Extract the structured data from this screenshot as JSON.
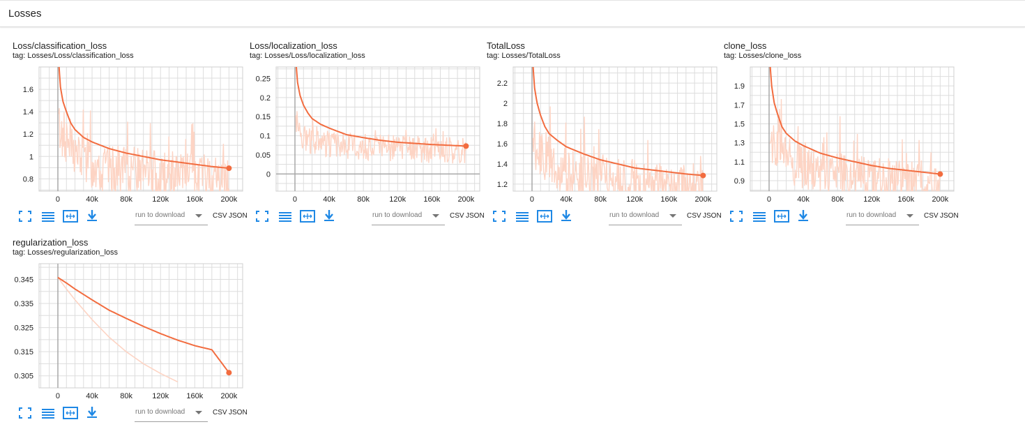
{
  "section": {
    "title": "Losses"
  },
  "colors": {
    "smoothed": "#f26c3f",
    "raw": "#fdd4c4",
    "grid": "#dddddd",
    "axis": "#a8a8a8",
    "icon": "#1e88e5"
  },
  "toolbar": {
    "icons": [
      "fullscreen-icon",
      "log-scale-icon",
      "fit-domain-icon",
      "download-icon"
    ],
    "run_select_placeholder": "run to download",
    "csv_label": "CSV",
    "json_label": "JSON"
  },
  "cards": [
    {
      "title": "Loss/classification_loss",
      "tag": "tag: Losses/Loss/classification_loss",
      "chart_data": {
        "type": "line",
        "xlabel": "",
        "ylabel": "",
        "xlim": [
          -22000,
          216000
        ],
        "ylim": [
          0.69,
          1.8
        ],
        "x_ticks": [
          0,
          40000,
          80000,
          120000,
          160000,
          200000
        ],
        "x_tick_labels": [
          "0",
          "40k",
          "80k",
          "120k",
          "160k",
          "200k"
        ],
        "y_ticks": [
          0.8,
          1.0,
          1.2,
          1.4,
          1.6
        ],
        "y_tick_labels": [
          "0.8",
          "1",
          "1.2",
          "1.4",
          "1.6"
        ],
        "grid": true,
        "series": [
          {
            "x": [
              1000,
              3000,
              6000,
              10000,
              15000,
              20000,
              30000,
              40000,
              60000,
              80000,
              100000,
              120000,
              140000,
              160000,
              180000,
              200000
            ],
            "y": [
              1.85,
              1.62,
              1.49,
              1.4,
              1.3,
              1.24,
              1.17,
              1.13,
              1.07,
              1.03,
              1.0,
              0.97,
              0.95,
              0.93,
              0.91,
              0.895
            ]
          },
          {
            "raw": true,
            "x": [
              1000,
              5000,
              10000,
              20000,
              30000,
              40000,
              60000,
              80000,
              100000,
              120000,
              140000,
              160000,
              180000,
              200000
            ],
            "y": [
              1.3,
              1.2,
              1.15,
              1.05,
              1.0,
              0.95,
              0.9,
              0.9,
              0.88,
              0.85,
              0.85,
              0.83,
              0.83,
              0.82
            ],
            "spread": 0.22,
            "peaks": [
              1.42,
              1.4
            ]
          }
        ]
      }
    },
    {
      "title": "Loss/localization_loss",
      "tag": "tag: Losses/Loss/localization_loss",
      "chart_data": {
        "type": "line",
        "xlabel": "",
        "ylabel": "",
        "xlim": [
          -22000,
          216000
        ],
        "ylim": [
          -0.045,
          0.28
        ],
        "x_ticks": [
          0,
          40000,
          80000,
          120000,
          160000,
          200000
        ],
        "x_tick_labels": [
          "0",
          "40k",
          "80k",
          "120k",
          "160k",
          "200k"
        ],
        "y_ticks": [
          0,
          0.05,
          0.1,
          0.15,
          0.2,
          0.25
        ],
        "y_tick_labels": [
          "0",
          "0.05",
          "0.1",
          "0.15",
          "0.2",
          "0.25"
        ],
        "grid": true,
        "series": [
          {
            "x": [
              1000,
              3000,
              6000,
              10000,
              15000,
              20000,
              30000,
              40000,
              60000,
              80000,
              100000,
              120000,
              140000,
              160000,
              180000,
              200000
            ],
            "y": [
              0.3,
              0.24,
              0.205,
              0.18,
              0.16,
              0.145,
              0.13,
              0.12,
              0.103,
              0.095,
              0.088,
              0.083,
              0.08,
              0.077,
              0.075,
              0.073
            ]
          },
          {
            "raw": true,
            "x": [
              1000,
              5000,
              10000,
              20000,
              30000,
              40000,
              60000,
              80000,
              100000,
              120000,
              140000,
              160000,
              180000,
              200000
            ],
            "y": [
              0.15,
              0.12,
              0.1,
              0.09,
              0.085,
              0.08,
              0.078,
              0.075,
              0.073,
              0.07,
              0.068,
              0.066,
              0.065,
              0.064
            ],
            "spread": 0.035,
            "peaks": [
              0.16,
              0.15
            ]
          }
        ]
      }
    },
    {
      "title": "TotalLoss",
      "tag": "tag: Losses/TotalLoss",
      "chart_data": {
        "type": "line",
        "xlabel": "",
        "ylabel": "",
        "xlim": [
          -22000,
          216000
        ],
        "ylim": [
          1.13,
          2.36
        ],
        "x_ticks": [
          0,
          40000,
          80000,
          120000,
          160000,
          200000
        ],
        "x_tick_labels": [
          "0",
          "40k",
          "80k",
          "120k",
          "160k",
          "200k"
        ],
        "y_ticks": [
          1.2,
          1.4,
          1.6,
          1.8,
          2.0,
          2.2
        ],
        "y_tick_labels": [
          "1.2",
          "1.4",
          "1.6",
          "1.8",
          "2",
          "2.2"
        ],
        "grid": true,
        "series": [
          {
            "x": [
              1000,
              3000,
              6000,
              10000,
              15000,
              20000,
              30000,
              40000,
              60000,
              80000,
              100000,
              120000,
              140000,
              160000,
              180000,
              200000
            ],
            "y": [
              2.4,
              2.15,
              2.0,
              1.88,
              1.77,
              1.7,
              1.63,
              1.57,
              1.5,
              1.44,
              1.4,
              1.36,
              1.34,
              1.32,
              1.3,
              1.285
            ]
          },
          {
            "raw": true,
            "x": [
              1000,
              5000,
              10000,
              20000,
              30000,
              40000,
              60000,
              80000,
              100000,
              120000,
              140000,
              160000,
              180000,
              200000
            ],
            "y": [
              1.7,
              1.6,
              1.5,
              1.45,
              1.4,
              1.35,
              1.3,
              1.28,
              1.25,
              1.24,
              1.22,
              1.21,
              1.2,
              1.2
            ],
            "spread": 0.25,
            "peaks": [
              1.62,
              1.55
            ]
          }
        ]
      }
    },
    {
      "title": "clone_loss",
      "tag": "tag: Losses/clone_loss",
      "chart_data": {
        "type": "line",
        "xlabel": "",
        "ylabel": "",
        "xlim": [
          -22000,
          216000
        ],
        "ylim": [
          0.79,
          2.1
        ],
        "x_ticks": [
          0,
          40000,
          80000,
          120000,
          160000,
          200000
        ],
        "x_tick_labels": [
          "0",
          "40k",
          "80k",
          "120k",
          "160k",
          "200k"
        ],
        "y_ticks": [
          0.9,
          1.1,
          1.3,
          1.5,
          1.7,
          1.9
        ],
        "y_tick_labels": [
          "0.9",
          "1.1",
          "1.3",
          "1.5",
          "1.7",
          "1.9"
        ],
        "grid": true,
        "series": [
          {
            "x": [
              1000,
              3000,
              6000,
              10000,
              15000,
              20000,
              30000,
              40000,
              60000,
              80000,
              100000,
              120000,
              140000,
              160000,
              180000,
              200000
            ],
            "y": [
              2.15,
              1.9,
              1.72,
              1.6,
              1.47,
              1.4,
              1.32,
              1.27,
              1.19,
              1.14,
              1.1,
              1.06,
              1.03,
              1.01,
              0.99,
              0.97
            ]
          },
          {
            "raw": true,
            "x": [
              1000,
              5000,
              10000,
              20000,
              30000,
              40000,
              60000,
              80000,
              100000,
              120000,
              140000,
              160000,
              180000,
              200000
            ],
            "y": [
              1.4,
              1.3,
              1.25,
              1.15,
              1.1,
              1.05,
              1.0,
              0.98,
              0.95,
              0.93,
              0.92,
              0.9,
              0.9,
              0.89
            ],
            "spread": 0.25,
            "peaks": [
              1.55,
              1.5
            ]
          }
        ]
      }
    },
    {
      "title": "regularization_loss",
      "tag": "tag: Losses/regularization_loss",
      "chart_data": {
        "type": "line",
        "xlabel": "",
        "ylabel": "",
        "xlim": [
          -22000,
          216000
        ],
        "ylim": [
          0.3,
          0.3515
        ],
        "x_ticks": [
          0,
          40000,
          80000,
          120000,
          160000,
          200000
        ],
        "x_tick_labels": [
          "0",
          "40k",
          "80k",
          "120k",
          "160k",
          "200k"
        ],
        "y_ticks": [
          0.305,
          0.315,
          0.325,
          0.335,
          0.345
        ],
        "y_tick_labels": [
          "0.305",
          "0.315",
          "0.325",
          "0.335",
          "0.345"
        ],
        "grid": true,
        "series": [
          {
            "x": [
              0,
              10000,
              20000,
              40000,
              60000,
              80000,
              100000,
              120000,
              140000,
              160000,
              180000,
              200000
            ],
            "y": [
              0.3458,
              0.3435,
              0.341,
              0.3365,
              0.3322,
              0.3288,
              0.3255,
              0.3225,
              0.3198,
              0.3175,
              0.3158,
              0.3063
            ]
          },
          {
            "raw": true,
            "x": [
              0,
              10000,
              20000,
              40000,
              60000,
              80000,
              100000,
              120000,
              140000
            ],
            "y": [
              0.3458,
              0.341,
              0.3365,
              0.3283,
              0.321,
              0.315,
              0.31,
              0.306,
              0.3025
            ],
            "spread": 0,
            "peaks": []
          }
        ]
      }
    }
  ]
}
